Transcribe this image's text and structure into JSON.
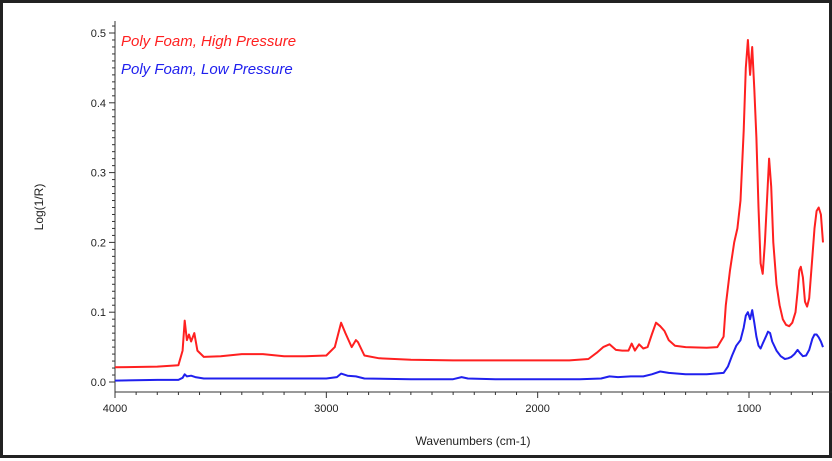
{
  "chart_data": {
    "type": "line",
    "xlabel": "Wavenumbers (cm-1)",
    "ylabel": "Log(1/R)",
    "xlim": [
      4000,
      650
    ],
    "ylim": [
      -0.01,
      0.51
    ],
    "x_ticks": [
      "4000",
      "3000",
      "2000",
      "1000"
    ],
    "x_tick_values": [
      4000,
      3000,
      2000,
      1000
    ],
    "y_ticks": [
      "0.0",
      "0.1",
      "0.2",
      "0.3",
      "0.4",
      "0.5"
    ],
    "y_tick_values": [
      0.0,
      0.1,
      0.2,
      0.3,
      0.4,
      0.5
    ],
    "grid": false,
    "legend_placement": "top-left",
    "series": [
      {
        "name": "Poly Foam, High Pressure",
        "color": "#ff2020",
        "points": [
          [
            4000,
            0.021
          ],
          [
            3800,
            0.022
          ],
          [
            3700,
            0.024
          ],
          [
            3680,
            0.045
          ],
          [
            3670,
            0.088
          ],
          [
            3660,
            0.06
          ],
          [
            3650,
            0.068
          ],
          [
            3640,
            0.058
          ],
          [
            3625,
            0.07
          ],
          [
            3610,
            0.045
          ],
          [
            3580,
            0.036
          ],
          [
            3500,
            0.037
          ],
          [
            3400,
            0.04
          ],
          [
            3300,
            0.04
          ],
          [
            3200,
            0.037
          ],
          [
            3100,
            0.037
          ],
          [
            3000,
            0.038
          ],
          [
            2960,
            0.05
          ],
          [
            2930,
            0.085
          ],
          [
            2910,
            0.07
          ],
          [
            2880,
            0.05
          ],
          [
            2860,
            0.06
          ],
          [
            2850,
            0.057
          ],
          [
            2820,
            0.038
          ],
          [
            2750,
            0.034
          ],
          [
            2600,
            0.032
          ],
          [
            2400,
            0.031
          ],
          [
            2200,
            0.031
          ],
          [
            2000,
            0.031
          ],
          [
            1850,
            0.031
          ],
          [
            1760,
            0.033
          ],
          [
            1720,
            0.042
          ],
          [
            1690,
            0.05
          ],
          [
            1660,
            0.054
          ],
          [
            1630,
            0.046
          ],
          [
            1600,
            0.045
          ],
          [
            1570,
            0.045
          ],
          [
            1555,
            0.055
          ],
          [
            1540,
            0.045
          ],
          [
            1520,
            0.054
          ],
          [
            1500,
            0.048
          ],
          [
            1480,
            0.05
          ],
          [
            1460,
            0.068
          ],
          [
            1440,
            0.085
          ],
          [
            1420,
            0.08
          ],
          [
            1400,
            0.073
          ],
          [
            1380,
            0.06
          ],
          [
            1350,
            0.052
          ],
          [
            1300,
            0.05
          ],
          [
            1200,
            0.049
          ],
          [
            1150,
            0.05
          ],
          [
            1120,
            0.065
          ],
          [
            1110,
            0.11
          ],
          [
            1090,
            0.16
          ],
          [
            1070,
            0.2
          ],
          [
            1055,
            0.22
          ],
          [
            1040,
            0.26
          ],
          [
            1025,
            0.36
          ],
          [
            1015,
            0.45
          ],
          [
            1005,
            0.49
          ],
          [
            995,
            0.44
          ],
          [
            985,
            0.48
          ],
          [
            975,
            0.42
          ],
          [
            965,
            0.35
          ],
          [
            955,
            0.25
          ],
          [
            945,
            0.17
          ],
          [
            935,
            0.155
          ],
          [
            925,
            0.2
          ],
          [
            915,
            0.26
          ],
          [
            905,
            0.32
          ],
          [
            895,
            0.28
          ],
          [
            885,
            0.2
          ],
          [
            870,
            0.14
          ],
          [
            855,
            0.11
          ],
          [
            840,
            0.09
          ],
          [
            825,
            0.082
          ],
          [
            810,
            0.08
          ],
          [
            795,
            0.085
          ],
          [
            780,
            0.1
          ],
          [
            770,
            0.13
          ],
          [
            762,
            0.16
          ],
          [
            755,
            0.165
          ],
          [
            745,
            0.15
          ],
          [
            735,
            0.115
          ],
          [
            725,
            0.108
          ],
          [
            715,
            0.12
          ],
          [
            700,
            0.18
          ],
          [
            690,
            0.22
          ],
          [
            680,
            0.245
          ],
          [
            670,
            0.25
          ],
          [
            660,
            0.24
          ],
          [
            650,
            0.2
          ]
        ]
      },
      {
        "name": "Poly Foam, Low Pressure",
        "color": "#2020ee",
        "points": [
          [
            4000,
            0.002
          ],
          [
            3800,
            0.003
          ],
          [
            3700,
            0.003
          ],
          [
            3680,
            0.006
          ],
          [
            3670,
            0.011
          ],
          [
            3660,
            0.008
          ],
          [
            3640,
            0.009
          ],
          [
            3620,
            0.007
          ],
          [
            3580,
            0.005
          ],
          [
            3400,
            0.005
          ],
          [
            3200,
            0.005
          ],
          [
            3000,
            0.005
          ],
          [
            2950,
            0.007
          ],
          [
            2930,
            0.012
          ],
          [
            2900,
            0.009
          ],
          [
            2860,
            0.008
          ],
          [
            2820,
            0.005
          ],
          [
            2600,
            0.004
          ],
          [
            2400,
            0.004
          ],
          [
            2360,
            0.007
          ],
          [
            2330,
            0.005
          ],
          [
            2200,
            0.004
          ],
          [
            2000,
            0.004
          ],
          [
            1800,
            0.004
          ],
          [
            1700,
            0.005
          ],
          [
            1660,
            0.008
          ],
          [
            1620,
            0.007
          ],
          [
            1560,
            0.008
          ],
          [
            1500,
            0.008
          ],
          [
            1460,
            0.011
          ],
          [
            1420,
            0.015
          ],
          [
            1380,
            0.013
          ],
          [
            1300,
            0.011
          ],
          [
            1200,
            0.011
          ],
          [
            1120,
            0.013
          ],
          [
            1100,
            0.022
          ],
          [
            1080,
            0.038
          ],
          [
            1060,
            0.052
          ],
          [
            1040,
            0.06
          ],
          [
            1025,
            0.078
          ],
          [
            1015,
            0.095
          ],
          [
            1005,
            0.1
          ],
          [
            995,
            0.09
          ],
          [
            985,
            0.103
          ],
          [
            975,
            0.085
          ],
          [
            965,
            0.065
          ],
          [
            955,
            0.052
          ],
          [
            945,
            0.048
          ],
          [
            935,
            0.055
          ],
          [
            920,
            0.065
          ],
          [
            910,
            0.072
          ],
          [
            900,
            0.07
          ],
          [
            890,
            0.058
          ],
          [
            870,
            0.045
          ],
          [
            850,
            0.037
          ],
          [
            830,
            0.033
          ],
          [
            815,
            0.034
          ],
          [
            800,
            0.036
          ],
          [
            785,
            0.04
          ],
          [
            770,
            0.046
          ],
          [
            760,
            0.042
          ],
          [
            745,
            0.037
          ],
          [
            730,
            0.038
          ],
          [
            715,
            0.046
          ],
          [
            700,
            0.062
          ],
          [
            690,
            0.068
          ],
          [
            680,
            0.068
          ],
          [
            670,
            0.064
          ],
          [
            660,
            0.058
          ],
          [
            650,
            0.05
          ]
        ]
      }
    ]
  }
}
